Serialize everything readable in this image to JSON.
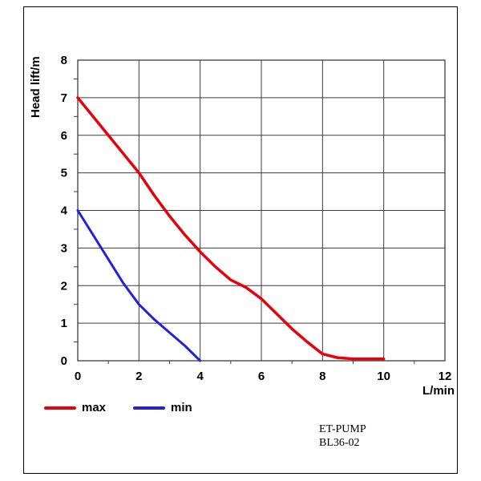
{
  "footer": {
    "line1": "ET-PUMP",
    "line2": "BL36-02"
  },
  "chart_data": {
    "type": "line",
    "title": "",
    "xlabel": "L/min",
    "ylabel": "Head lift/m",
    "xlim": [
      0,
      12
    ],
    "ylim": [
      0,
      8
    ],
    "x_ticks": [
      0,
      2,
      4,
      6,
      8,
      10,
      12
    ],
    "y_ticks": [
      0,
      1,
      2,
      3,
      4,
      5,
      6,
      7,
      8
    ],
    "x_minor_ticks": [
      1,
      3,
      5,
      7,
      9,
      11
    ],
    "y_minor_ticks": [
      0.5,
      1.5,
      2.5,
      3.5,
      4.5,
      5.5,
      6.5,
      7.5
    ],
    "grid": true,
    "grid_color": "#3c3c3c",
    "legend_position": "bottom-left",
    "series": [
      {
        "name": "max",
        "color": "#e8000d",
        "width": 3.5,
        "points": [
          [
            0,
            7
          ],
          [
            0.5,
            6.5
          ],
          [
            1,
            6
          ],
          [
            1.5,
            5.5
          ],
          [
            2,
            5
          ],
          [
            2.5,
            4.4
          ],
          [
            3,
            3.85
          ],
          [
            3.5,
            3.35
          ],
          [
            4,
            2.9
          ],
          [
            4.5,
            2.5
          ],
          [
            5,
            2.15
          ],
          [
            5.5,
            1.95
          ],
          [
            6,
            1.65
          ],
          [
            6.5,
            1.25
          ],
          [
            7,
            0.85
          ],
          [
            7.5,
            0.5
          ],
          [
            8,
            0.18
          ],
          [
            8.5,
            0.08
          ],
          [
            9,
            0.05
          ],
          [
            9.5,
            0.05
          ],
          [
            10,
            0.05
          ]
        ]
      },
      {
        "name": "min",
        "color": "#2222dd",
        "width": 3,
        "points": [
          [
            0,
            4
          ],
          [
            0.5,
            3.35
          ],
          [
            1,
            2.7
          ],
          [
            1.5,
            2.05
          ],
          [
            2,
            1.5
          ],
          [
            2.5,
            1.1
          ],
          [
            3,
            0.75
          ],
          [
            3.5,
            0.4
          ],
          [
            4,
            0
          ]
        ]
      }
    ]
  }
}
